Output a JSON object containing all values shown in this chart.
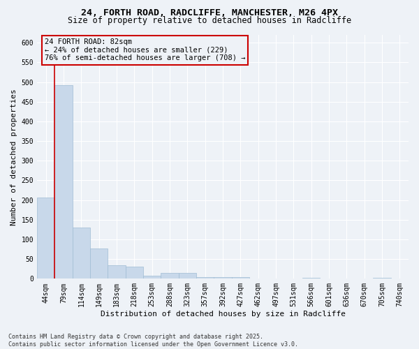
{
  "title_line1": "24, FORTH ROAD, RADCLIFFE, MANCHESTER, M26 4PX",
  "title_line2": "Size of property relative to detached houses in Radcliffe",
  "xlabel": "Distribution of detached houses by size in Radcliffe",
  "ylabel": "Number of detached properties",
  "bar_color": "#c8d8ea",
  "bar_edge_color": "#a0bcd4",
  "vline_color": "#cc0000",
  "annotation_box_color": "#cc0000",
  "background_color": "#eef2f7",
  "grid_color": "#ffffff",
  "categories": [
    "44sqm",
    "79sqm",
    "114sqm",
    "149sqm",
    "183sqm",
    "218sqm",
    "253sqm",
    "288sqm",
    "323sqm",
    "357sqm",
    "392sqm",
    "427sqm",
    "462sqm",
    "497sqm",
    "531sqm",
    "566sqm",
    "601sqm",
    "636sqm",
    "670sqm",
    "705sqm",
    "740sqm"
  ],
  "values": [
    207,
    492,
    130,
    77,
    35,
    30,
    8,
    14,
    14,
    5,
    5,
    5,
    0,
    0,
    0,
    3,
    0,
    0,
    0,
    3,
    0
  ],
  "vline_index": 1,
  "annotation_text": "24 FORTH ROAD: 82sqm\n← 24% of detached houses are smaller (229)\n76% of semi-detached houses are larger (708) →",
  "ylim": [
    0,
    620
  ],
  "yticks": [
    0,
    50,
    100,
    150,
    200,
    250,
    300,
    350,
    400,
    450,
    500,
    550,
    600
  ],
  "footnote": "Contains HM Land Registry data © Crown copyright and database right 2025.\nContains public sector information licensed under the Open Government Licence v3.0.",
  "title_fontsize": 9.5,
  "subtitle_fontsize": 8.5,
  "tick_fontsize": 7,
  "label_fontsize": 8,
  "annotation_fontsize": 7.5
}
